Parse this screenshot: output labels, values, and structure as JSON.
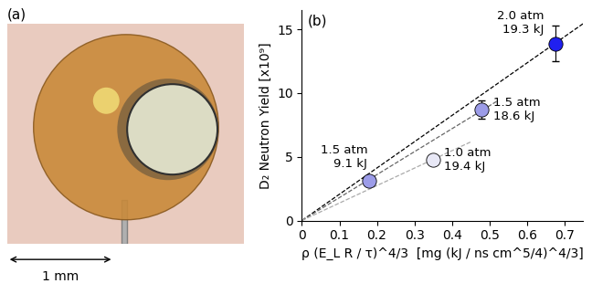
{
  "image_panel": {
    "panel_label": "(a)",
    "scale_bar_label": "1 mm"
  },
  "chart_data": {
    "type": "scatter",
    "panel_label": "(b)",
    "x_label": "ρ (E_L R / τ)^4/3  [mg (kJ / ns cm^5/4)^4/3]",
    "y_label": "D₂ Neutron Yield [x10⁹]",
    "x": [
      0.18,
      0.35,
      0.48,
      0.675
    ],
    "values": [
      3.1,
      4.8,
      8.7,
      13.9
    ],
    "errors": [
      0.25,
      0.2,
      0.7,
      1.4
    ],
    "point_labels": [
      "1.5 atm\n9.1 kJ",
      "1.0 atm\n19.4 kJ",
      "1.5 atm\n18.6 kJ",
      "2.0 atm\n19.3 kJ"
    ],
    "colors": [
      "#9c9ce8",
      "#e8e8f6",
      "#9c9ce8",
      "#2020f0"
    ],
    "marker": "o",
    "fit_lines": [
      {
        "slope": 20.6,
        "x_end": 0.75,
        "color": "#000000",
        "line_style": "dashed"
      },
      {
        "slope": 18.0,
        "x_end": 0.52,
        "color": "#666666",
        "line_style": "dashed"
      },
      {
        "slope": 13.7,
        "x_end": 0.45,
        "color": "#aaaaaa",
        "line_style": "dashed"
      }
    ],
    "xlim": [
      0,
      0.75
    ],
    "xticks": [
      0,
      0.1,
      0.2,
      0.3,
      0.4,
      0.5,
      0.6,
      0.7
    ],
    "ylim": [
      0,
      16.5
    ],
    "yticks": [
      0,
      5,
      10,
      15
    ],
    "grid": false
  }
}
